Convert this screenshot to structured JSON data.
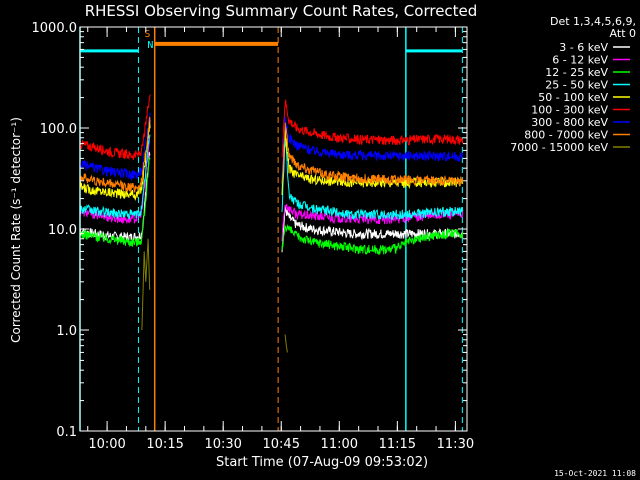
{
  "chart_data": {
    "type": "line",
    "title": "RHESSI Observing Summary Count Rates, Corrected",
    "xlabel": "Start Time (07-Aug-09 09:53:02)",
    "ylabel": "Corrected Count Rate (s⁻¹ detector⁻¹)",
    "x_units": "minutes after 09:53:02 on 07-Aug-09",
    "xlim": [
      0,
      100
    ],
    "ylim": [
      0.1,
      1000
    ],
    "yscale": "log",
    "x_ticks": [
      {
        "value": 7,
        "label": "10:00"
      },
      {
        "value": 22,
        "label": "10:15"
      },
      {
        "value": 37,
        "label": "10:30"
      },
      {
        "value": 52,
        "label": "10:45"
      },
      {
        "value": 67,
        "label": "11:00"
      },
      {
        "value": 82,
        "label": "11:15"
      },
      {
        "value": 97,
        "label": "11:30"
      }
    ],
    "y_ticks": [
      {
        "value": 0.1,
        "label": "0.1"
      },
      {
        "value": 1,
        "label": "1.0"
      },
      {
        "value": 10,
        "label": "10.0"
      },
      {
        "value": 100,
        "label": "100.0"
      },
      {
        "value": 1000,
        "label": "1000.0"
      }
    ],
    "legend": {
      "placement": "right",
      "header": [
        "Det 1,3,4,5,6,9,",
        "Att 0"
      ]
    },
    "series": [
      {
        "name": "3 - 6 keV",
        "color": "#ffffff",
        "x": [
          0,
          4,
          8,
          13,
          15,
          16,
          18,
          52,
          53,
          54,
          56,
          60,
          65,
          70,
          80,
          85,
          90,
          95,
          99
        ],
        "y": [
          9.5,
          9,
          8.5,
          8.3,
          8.5,
          9,
          60,
          5,
          16,
          13,
          11,
          10,
          9.5,
          9,
          9,
          9,
          9,
          9,
          9
        ]
      },
      {
        "name": "6 - 12 keV",
        "color": "#ff00ff",
        "x": [
          0,
          4,
          8,
          13,
          15,
          16,
          18,
          52,
          53,
          54,
          56,
          60,
          65,
          70,
          80,
          85,
          90,
          95,
          99
        ],
        "y": [
          15,
          14,
          13,
          12.5,
          13,
          15,
          80,
          7,
          18,
          16,
          14,
          13.5,
          13,
          12.5,
          12.5,
          13,
          13.5,
          14,
          14
        ]
      },
      {
        "name": "12 - 25 keV",
        "color": "#00ff00",
        "x": [
          0,
          4,
          8,
          13,
          15,
          16,
          18,
          52,
          53,
          54,
          56,
          60,
          65,
          70,
          75,
          80,
          82,
          85,
          90,
          95,
          99
        ],
        "y": [
          9,
          8.5,
          8,
          7.5,
          7.5,
          8,
          50,
          5,
          11,
          10,
          8.5,
          7.5,
          7,
          6.5,
          6.3,
          6.3,
          6.5,
          7.5,
          8.5,
          9,
          9
        ]
      },
      {
        "name": "25 - 50 keV",
        "color": "#00ffff",
        "x": [
          0,
          4,
          8,
          13,
          15,
          16,
          18,
          52,
          53,
          54,
          56,
          60,
          65,
          70,
          80,
          85,
          90,
          95,
          99
        ],
        "y": [
          16,
          15,
          14.5,
          14,
          14,
          16,
          90,
          9,
          90,
          22,
          18,
          16,
          15,
          14,
          14,
          14,
          14.5,
          15,
          15
        ]
      },
      {
        "name": "50 - 100 keV",
        "color": "#ffff00",
        "x": [
          0,
          4,
          8,
          13,
          15,
          16,
          18,
          52,
          53,
          54,
          56,
          60,
          65,
          70,
          80,
          85,
          90,
          95,
          99
        ],
        "y": [
          26,
          24,
          23,
          22,
          22,
          26,
          110,
          15,
          100,
          40,
          34,
          31,
          30,
          29,
          29,
          29,
          29,
          29,
          29
        ]
      },
      {
        "name": "100 - 300 keV",
        "color": "#ff0000",
        "x": [
          0,
          4,
          8,
          13,
          15,
          16,
          18,
          52,
          53,
          54,
          56,
          60,
          65,
          70,
          80,
          85,
          90,
          95,
          99
        ],
        "y": [
          70,
          64,
          58,
          54,
          54,
          60,
          200,
          40,
          190,
          120,
          100,
          90,
          82,
          78,
          76,
          76,
          78,
          78,
          76
        ]
      },
      {
        "name": "300 - 800 keV",
        "color": "#0000ff",
        "x": [
          0,
          4,
          8,
          13,
          15,
          16,
          18,
          52,
          53,
          54,
          56,
          60,
          65,
          70,
          80,
          85,
          90,
          95,
          99
        ],
        "y": [
          44,
          40,
          37,
          35,
          35,
          38,
          140,
          25,
          130,
          80,
          68,
          60,
          56,
          54,
          53,
          53,
          53,
          53,
          52
        ]
      },
      {
        "name": "800 - 7000 keV",
        "color": "#ff8000",
        "x": [
          0,
          4,
          8,
          13,
          15,
          16,
          18,
          52,
          53,
          54,
          56,
          60,
          65,
          70,
          80,
          85,
          90,
          95,
          99
        ],
        "y": [
          33,
          30,
          28,
          26,
          26,
          30,
          120,
          18,
          110,
          55,
          44,
          38,
          34,
          32,
          31,
          31,
          30,
          30,
          30
        ]
      },
      {
        "name": "7000 - 15000 keV",
        "color": "#808000",
        "x": [
          16,
          17,
          17.5,
          18,
          18.5,
          53,
          53.5,
          54
        ],
        "y": [
          1,
          8,
          3,
          5,
          2.5,
          0.9,
          0.75,
          0.6
        ]
      }
    ],
    "annotations": {
      "cyan_vlines_solid": [
        0,
        84.2
      ],
      "cyan_vlines_dashed": [
        15.1,
        98.8
      ],
      "orange_vlines_solid": [
        19.3
      ],
      "orange_vlines_dashed": [
        51.2
      ],
      "cyan_bars": [
        {
          "from": 0,
          "to": 15.1,
          "y": 580
        },
        {
          "from": 84.2,
          "to": 98.8,
          "y": 580
        }
      ],
      "orange_bars": [
        {
          "from": 19.3,
          "to": 51.2,
          "y": 680
        }
      ],
      "markers": [
        {
          "label": "S",
          "color": "#ff8000",
          "x": 17.4,
          "y": 800
        },
        {
          "label": "N",
          "color": "#00ffff",
          "x": 18.2,
          "y": 620
        }
      ]
    },
    "footer_date": "15-Oct-2021 11:08"
  }
}
